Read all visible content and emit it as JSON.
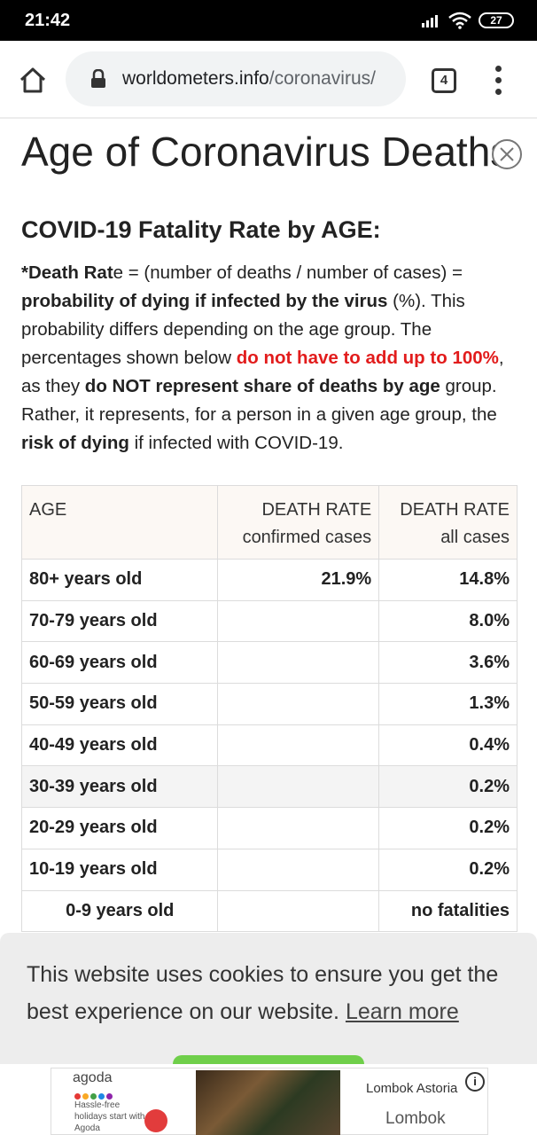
{
  "status_bar": {
    "time": "21:42",
    "battery": "27"
  },
  "browser": {
    "url_domain": "worldometers.info",
    "url_path": "/coronavirus/",
    "tab_count": "4"
  },
  "page": {
    "title": "Age of Coronavirus Deaths",
    "section_title": "COVID-19 Fatality Rate by AGE:",
    "desc": {
      "p1_bold_a": "*Death Rat",
      "p1_plain_a": "e = (number of deaths / number of cases) = ",
      "p1_bold_b": "probability of dying if infected by the virus",
      "p1_plain_b": " (%). This probability differs depending on the age group. The percentages shown below ",
      "p1_red": "do not have to add up to 100%",
      "p1_plain_c": ", as they ",
      "p1_bold_c": "do NOT represent share of deaths by age",
      "p1_plain_d": " group. Rather, it represents, for a person in a given age group, the ",
      "p1_bold_d": "risk of dying",
      "p1_plain_e": " if infected with COVID-19."
    }
  },
  "table": {
    "headers": {
      "age": "AGE",
      "confirmed_line1": "DEATH RATE",
      "confirmed_line2": "confirmed cases",
      "all_line1": "DEATH RATE",
      "all_line2": "all cases"
    },
    "rows": [
      {
        "age": "80+ years old",
        "confirmed": "21.9%",
        "all": "14.8%"
      },
      {
        "age": "70-79 years old",
        "confirmed": "",
        "all": "8.0%"
      },
      {
        "age": "60-69 years old",
        "confirmed": "",
        "all": "3.6%"
      },
      {
        "age": "50-59 years old",
        "confirmed": "",
        "all": "1.3%"
      },
      {
        "age": "40-49 years old",
        "confirmed": "",
        "all": "0.4%"
      },
      {
        "age": "30-39 years old",
        "confirmed": "",
        "all": "0.2%"
      },
      {
        "age": "20-29 years old",
        "confirmed": "",
        "all": "0.2%"
      },
      {
        "age": "10-19 years old",
        "confirmed": "",
        "all": "0.2%"
      },
      {
        "age": "0-9 years old",
        "confirmed": "",
        "all": "no fatalities"
      }
    ]
  },
  "cookie_banner": {
    "text": "This website uses cookies to ensure you get the best experience on our website. ",
    "learn_more": "Learn more"
  },
  "ad": {
    "brand": "agoda",
    "tagline": "Hassle-free holidays start with Agoda",
    "hotel_name": "Lombok Astoria",
    "location": "Lombok",
    "info_icon_glyph": "i",
    "dot_colors": [
      "#e53935",
      "#f9a825",
      "#43a047",
      "#1e88e5",
      "#8e24aa"
    ]
  },
  "colors": {
    "accent_red": "#e21c1c",
    "accept_green": "#6fcf4a",
    "header_bg": "#fcf8f4"
  }
}
